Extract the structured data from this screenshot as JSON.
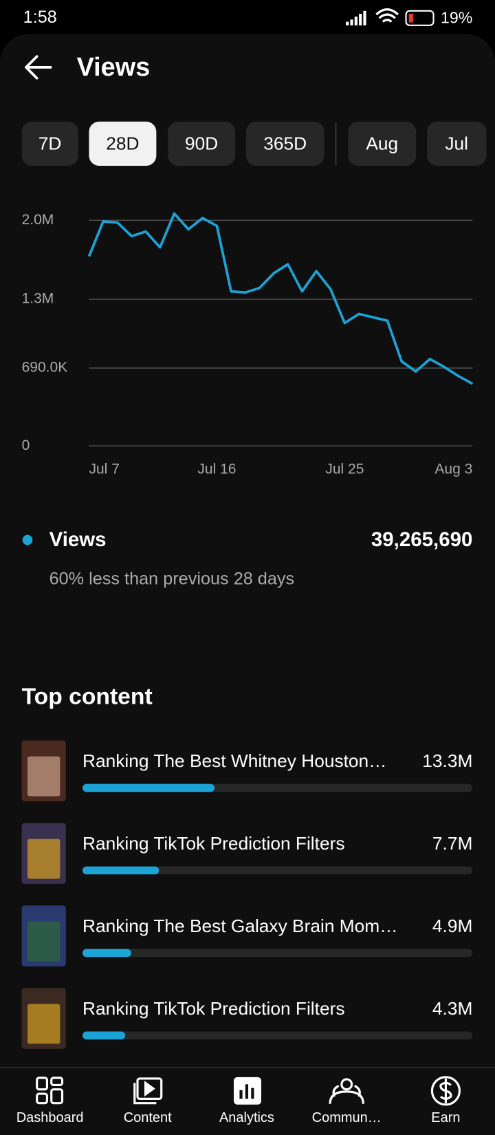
{
  "status_bar": {
    "time": "1:58",
    "battery": "19%"
  },
  "header": {
    "title": "Views"
  },
  "tabs": {
    "items": [
      "7D",
      "28D",
      "90D",
      "365D",
      "Aug",
      "Jul"
    ],
    "selected": 1
  },
  "chart_data": {
    "type": "line",
    "categories": [
      "Jul 7",
      null,
      null,
      null,
      null,
      null,
      null,
      null,
      null,
      "Jul 16",
      null,
      null,
      null,
      null,
      null,
      null,
      null,
      null,
      "Jul 25",
      null,
      null,
      null,
      null,
      null,
      null,
      null,
      null,
      "Aug 3"
    ],
    "values": [
      1680000,
      1990000,
      1980000,
      1860000,
      1900000,
      1760000,
      2060000,
      1920000,
      2020000,
      1950000,
      1370000,
      1360000,
      1400000,
      1530000,
      1610000,
      1370000,
      1550000,
      1390000,
      1090000,
      1170000,
      1140000,
      1110000,
      750000,
      660000,
      770000,
      700000,
      620000,
      550000
    ],
    "color": "#1ba3d6",
    "ylim": [
      0,
      2070000
    ],
    "yticks": [
      0,
      {
        "value": 690000,
        "label": "690.0K"
      },
      {
        "value": 1300000,
        "label": "1.3M"
      },
      {
        "value": 2000000,
        "label": "2.0M"
      }
    ],
    "grid": true
  },
  "summary": {
    "label": "Views",
    "value": 39265690,
    "value_label": "39,265,690",
    "comparison": "60% less than previous 28 days"
  },
  "top_content": {
    "title": "Top content",
    "titles": [
      "Ranking The Best Whitney Houston…",
      "Ranking TikTok Prediction Filters",
      "Ranking The Best Galaxy Brain Mom…",
      "Ranking TikTok Prediction Filters"
    ],
    "values": [
      13300000,
      7700000,
      4900000,
      4300000
    ],
    "value_labels": [
      "13.3M",
      "7.7M",
      "4.9M",
      "4.3M"
    ]
  },
  "nav": {
    "items": [
      "Dashboard",
      "Content",
      "Analytics",
      "Commun…",
      "Earn"
    ]
  }
}
